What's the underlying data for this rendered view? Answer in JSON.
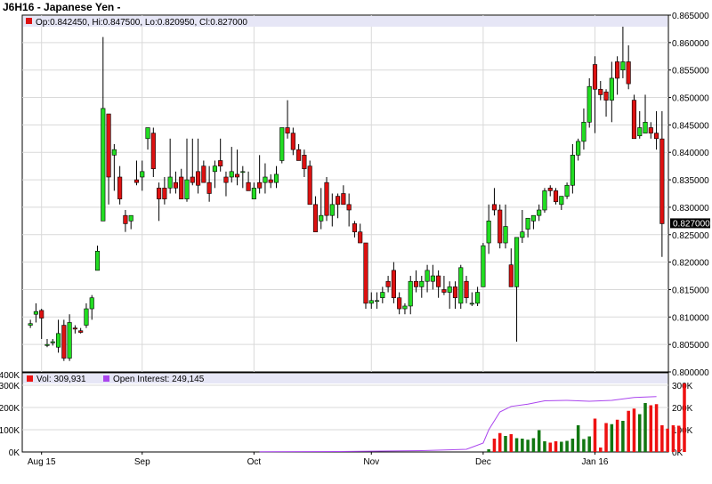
{
  "chart_data": [
    {
      "type": "candlestick",
      "title": "J6H16 - Japanese Yen -",
      "legend": {
        "position": "top-left",
        "ohlc_text": "Op:0.842450, Hi:0.847500, Lo:0.820950, Cl:0.827000",
        "up_color": "#22dd22",
        "down_color": "#dd1111"
      },
      "last_price_label": "0.827000",
      "y_axis": {
        "side": "right",
        "ylim": [
          0.8,
          0.865
        ],
        "tick_labels": [
          "0.800000",
          "0.805000",
          "0.810000",
          "0.815000",
          "0.820000",
          "0.825000",
          "0.830000",
          "0.835000",
          "0.840000",
          "0.845000",
          "0.850000",
          "0.855000",
          "0.860000",
          "0.865000"
        ]
      },
      "x_axis": {
        "tick_labels": [
          "Aug 15",
          "Sep",
          "Oct",
          "Nov",
          "Dec",
          "Jan 16"
        ],
        "tick_index": [
          2,
          20,
          40,
          61,
          81,
          101
        ]
      },
      "grid": true,
      "values": [
        [
          0.8085,
          0.8095,
          0.808,
          0.8088
        ],
        [
          0.8105,
          0.8125,
          0.809,
          0.811
        ],
        [
          0.8112,
          0.8115,
          0.806,
          0.8098
        ],
        [
          0.8048,
          0.806,
          0.8045,
          0.805
        ],
        [
          0.8053,
          0.806,
          0.8048,
          0.8055
        ],
        [
          0.8045,
          0.8095,
          0.8035,
          0.807
        ],
        [
          0.8085,
          0.8095,
          0.802,
          0.8025
        ],
        [
          0.8025,
          0.8105,
          0.802,
          0.809
        ],
        [
          0.808,
          0.8085,
          0.807,
          0.8078
        ],
        [
          0.8075,
          0.808,
          0.807,
          0.8072
        ],
        [
          0.8085,
          0.8125,
          0.808,
          0.8115
        ],
        [
          0.8115,
          0.814,
          0.8095,
          0.8135
        ],
        [
          0.8185,
          0.823,
          0.8185,
          0.822
        ],
        [
          0.8275,
          0.861,
          0.8275,
          0.848
        ],
        [
          0.847,
          0.8445,
          0.8305,
          0.8355
        ],
        [
          0.8395,
          0.8415,
          0.833,
          0.8405
        ],
        [
          0.8355,
          0.8375,
          0.8305,
          0.8315
        ],
        [
          0.8285,
          0.8295,
          0.8255,
          0.827
        ],
        [
          0.8275,
          0.8285,
          0.826,
          0.8285
        ],
        [
          0.835,
          0.8385,
          0.834,
          0.8345
        ],
        [
          0.8355,
          0.8385,
          0.833,
          0.8365
        ],
        [
          0.8425,
          0.8445,
          0.8405,
          0.8445
        ],
        [
          0.8435,
          0.8445,
          0.8355,
          0.837
        ],
        [
          0.8335,
          0.8345,
          0.8275,
          0.8315
        ],
        [
          0.8335,
          0.8355,
          0.8305,
          0.8315
        ],
        [
          0.8335,
          0.8425,
          0.8325,
          0.8355
        ],
        [
          0.8345,
          0.8365,
          0.8325,
          0.8335
        ],
        [
          0.8355,
          0.837,
          0.8325,
          0.8315
        ],
        [
          0.8315,
          0.8425,
          0.831,
          0.835
        ],
        [
          0.8355,
          0.8425,
          0.834,
          0.8345
        ],
        [
          0.8365,
          0.8425,
          0.8325,
          0.834
        ],
        [
          0.8375,
          0.8385,
          0.8345,
          0.8345
        ],
        [
          0.8345,
          0.8375,
          0.831,
          0.8325
        ],
        [
          0.8365,
          0.8385,
          0.8335,
          0.8375
        ],
        [
          0.8385,
          0.8425,
          0.8365,
          0.8375
        ],
        [
          0.8355,
          0.8365,
          0.832,
          0.8345
        ],
        [
          0.8355,
          0.841,
          0.8345,
          0.8365
        ],
        [
          0.836,
          0.8405,
          0.834,
          0.8355
        ],
        [
          0.8365,
          0.8375,
          0.8335,
          0.8365
        ],
        [
          0.8345,
          0.8365,
          0.833,
          0.833
        ],
        [
          0.8315,
          0.8345,
          0.8315,
          0.8335
        ],
        [
          0.8345,
          0.8395,
          0.8325,
          0.8335
        ],
        [
          0.8345,
          0.838,
          0.8325,
          0.8355
        ],
        [
          0.835,
          0.836,
          0.8335,
          0.8345
        ],
        [
          0.8345,
          0.8375,
          0.8335,
          0.836
        ],
        [
          0.8385,
          0.8445,
          0.838,
          0.8445
        ],
        [
          0.8445,
          0.8495,
          0.8425,
          0.8435
        ],
        [
          0.8435,
          0.8445,
          0.8395,
          0.8405
        ],
        [
          0.8405,
          0.8415,
          0.8385,
          0.8385
        ],
        [
          0.8395,
          0.8405,
          0.8355,
          0.837
        ],
        [
          0.8375,
          0.8385,
          0.8305,
          0.8305
        ],
        [
          0.8305,
          0.832,
          0.8255,
          0.8255
        ],
        [
          0.8275,
          0.8335,
          0.826,
          0.8285
        ],
        [
          0.8345,
          0.8355,
          0.8275,
          0.8285
        ],
        [
          0.8285,
          0.8325,
          0.8265,
          0.8305
        ],
        [
          0.832,
          0.8325,
          0.828,
          0.8305
        ],
        [
          0.8325,
          0.834,
          0.8305,
          0.8305
        ],
        [
          0.8305,
          0.8325,
          0.8265,
          0.8295
        ],
        [
          0.827,
          0.8275,
          0.8245,
          0.8255
        ],
        [
          0.8255,
          0.827,
          0.8235,
          0.8235
        ],
        [
          0.8235,
          0.8235,
          0.8115,
          0.8125
        ],
        [
          0.8125,
          0.8145,
          0.8115,
          0.813
        ],
        [
          0.813,
          0.8145,
          0.8115,
          0.813
        ],
        [
          0.8135,
          0.8155,
          0.8125,
          0.8145
        ],
        [
          0.8165,
          0.8175,
          0.8145,
          0.8155
        ],
        [
          0.8185,
          0.82,
          0.8125,
          0.8135
        ],
        [
          0.8135,
          0.8145,
          0.8105,
          0.8115
        ],
        [
          0.8115,
          0.8125,
          0.8105,
          0.812
        ],
        [
          0.812,
          0.8175,
          0.8105,
          0.8165
        ],
        [
          0.8165,
          0.8185,
          0.8145,
          0.8155
        ],
        [
          0.8155,
          0.8175,
          0.8135,
          0.8165
        ],
        [
          0.8165,
          0.8195,
          0.8145,
          0.8185
        ],
        [
          0.8165,
          0.8195,
          0.815,
          0.8175
        ],
        [
          0.8175,
          0.8185,
          0.8135,
          0.8155
        ],
        [
          0.815,
          0.8175,
          0.814,
          0.8145
        ],
        [
          0.8145,
          0.8165,
          0.8115,
          0.8155
        ],
        [
          0.8155,
          0.8165,
          0.8115,
          0.8135
        ],
        [
          0.8125,
          0.8195,
          0.8115,
          0.819
        ],
        [
          0.8165,
          0.8175,
          0.8125,
          0.8135
        ],
        [
          0.8125,
          0.8145,
          0.812,
          0.8125
        ],
        [
          0.8125,
          0.8155,
          0.812,
          0.8145
        ],
        [
          0.8155,
          0.8235,
          0.8155,
          0.823
        ],
        [
          0.8235,
          0.8305,
          0.8215,
          0.8275
        ],
        [
          0.8305,
          0.8335,
          0.8285,
          0.8295
        ],
        [
          0.8295,
          0.8305,
          0.8225,
          0.8235
        ],
        [
          0.8235,
          0.8305,
          0.8225,
          0.8265
        ],
        [
          0.8195,
          0.8225,
          0.8155,
          0.8155
        ],
        [
          0.8155,
          0.8225,
          0.8055,
          0.8245
        ],
        [
          0.8245,
          0.8295,
          0.8235,
          0.8255
        ],
        [
          0.826,
          0.828,
          0.8245,
          0.828
        ],
        [
          0.8275,
          0.8285,
          0.826,
          0.8285
        ],
        [
          0.8285,
          0.8305,
          0.8275,
          0.8295
        ],
        [
          0.8295,
          0.8335,
          0.829,
          0.833
        ],
        [
          0.8335,
          0.834,
          0.832,
          0.833
        ],
        [
          0.833,
          0.8335,
          0.8305,
          0.831
        ],
        [
          0.8305,
          0.832,
          0.8295,
          0.832
        ],
        [
          0.832,
          0.8345,
          0.8315,
          0.834
        ],
        [
          0.834,
          0.8415,
          0.8325,
          0.8395
        ],
        [
          0.8395,
          0.8425,
          0.8385,
          0.842
        ],
        [
          0.842,
          0.848,
          0.8405,
          0.8455
        ],
        [
          0.8455,
          0.8535,
          0.8445,
          0.852
        ],
        [
          0.856,
          0.8575,
          0.8435,
          0.8515
        ],
        [
          0.8515,
          0.853,
          0.8495,
          0.8505
        ],
        [
          0.851,
          0.8515,
          0.8465,
          0.8495
        ],
        [
          0.8495,
          0.8565,
          0.8455,
          0.8535
        ],
        [
          0.8565,
          0.8575,
          0.8505,
          0.8535
        ],
        [
          0.855,
          0.863,
          0.8535,
          0.8565
        ],
        [
          0.8565,
          0.8595,
          0.8515,
          0.8525
        ],
        [
          0.8495,
          0.8505,
          0.8425,
          0.8425
        ],
        [
          0.843,
          0.8475,
          0.8425,
          0.8445
        ],
        [
          0.8435,
          0.8505,
          0.8435,
          0.8455
        ],
        [
          0.8445,
          0.8455,
          0.8425,
          0.8435
        ],
        [
          0.8435,
          0.8475,
          0.8405,
          0.8425
        ],
        [
          0.84245,
          0.8475,
          0.82095,
          0.827
        ]
      ]
    },
    {
      "type": "bar",
      "legend": {
        "position": "top-left",
        "volume_text": "Vol: 309,931",
        "oi_text": "Open Interest: 249,145",
        "volume_up_color": "#117711",
        "volume_down_color": "#ee1111",
        "oi_color": "#aa44ee"
      },
      "ylim": [
        0,
        300000
      ],
      "y_axis_right": [
        "300K",
        "200K",
        "100K",
        "0K"
      ],
      "y_axis_left": [
        "400K",
        "300K",
        "200K",
        "100K",
        "0K"
      ],
      "volume_first_index": 82,
      "volume": [
        12000,
        60000,
        85000,
        72000,
        80000,
        62000,
        60000,
        55000,
        62000,
        98000,
        48000,
        42000,
        48000,
        46000,
        50000,
        60000,
        120000,
        58000,
        70000,
        150000,
        20000,
        130000,
        125000,
        145000,
        140000,
        185000,
        195000,
        170000,
        220000,
        210000,
        215000,
        120000,
        105000,
        120000,
        118000,
        308000
      ],
      "open_interest": [
        {
          "x": 41,
          "y": 1000
        },
        {
          "x": 55,
          "y": 2000
        },
        {
          "x": 70,
          "y": 6000
        },
        {
          "x": 78,
          "y": 12000
        },
        {
          "x": 81,
          "y": 40000
        },
        {
          "x": 82,
          "y": 100000
        },
        {
          "x": 84,
          "y": 180000
        },
        {
          "x": 86,
          "y": 205000
        },
        {
          "x": 89,
          "y": 215000
        },
        {
          "x": 92,
          "y": 230000
        },
        {
          "x": 96,
          "y": 232000
        },
        {
          "x": 100,
          "y": 228000
        },
        {
          "x": 104,
          "y": 232000
        },
        {
          "x": 108,
          "y": 245000
        },
        {
          "x": 112,
          "y": 249145
        }
      ]
    }
  ]
}
